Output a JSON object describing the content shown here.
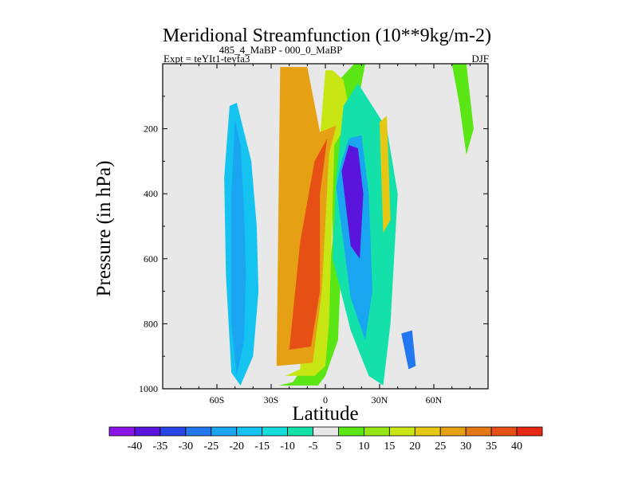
{
  "chart_data": {
    "type": "heatmap",
    "title": "Meridional Streamfunction (10**9kg/m-2)",
    "subtitle_left": "Expt = teYIt1-teyfa3",
    "subtitle_mid": "485_4_MaBP - 000_0_MaBP",
    "season": "DJF",
    "xlabel": "Latitude",
    "ylabel": "Pressure (in hPa)",
    "xlim": [
      -90,
      90
    ],
    "ylim": [
      1000,
      0
    ],
    "x_ticks": [
      {
        "value": -60,
        "label": "60S"
      },
      {
        "value": -30,
        "label": "30S"
      },
      {
        "value": 0,
        "label": "0"
      },
      {
        "value": 30,
        "label": "30N"
      },
      {
        "value": 60,
        "label": "60N"
      }
    ],
    "y_ticks": [
      {
        "value": 200,
        "label": "200"
      },
      {
        "value": 400,
        "label": "400"
      },
      {
        "value": 600,
        "label": "600"
      },
      {
        "value": 800,
        "label": "800"
      },
      {
        "value": 1000,
        "label": "1000"
      }
    ],
    "colorbar": {
      "levels": [
        -40,
        -35,
        -30,
        -25,
        -20,
        -15,
        -10,
        -5,
        5,
        10,
        15,
        20,
        25,
        30,
        35,
        40
      ],
      "colors": [
        "#8b14e6",
        "#5a14dc",
        "#2846e6",
        "#2378f0",
        "#19a5f0",
        "#14c3f0",
        "#14dcdc",
        "#14e1aa",
        "#e8e8e8",
        "#5ae614",
        "#96e614",
        "#c8e614",
        "#e6c814",
        "#e6a014",
        "#e67814",
        "#e65014",
        "#e62814"
      ]
    },
    "regions": [
      {
        "name": "sh-vertical-blue-band",
        "value": -17,
        "lat": [
          -47,
          -40,
          -37,
          -38,
          -41,
          -49,
          -53,
          -56,
          -55,
          -52
        ],
        "p": [
          990,
          900,
          700,
          500,
          300,
          120,
          130,
          350,
          650,
          950
        ]
      },
      {
        "name": "sh-blue-core",
        "value": -24,
        "lat": [
          -49,
          -45,
          -44,
          -45,
          -47,
          -50,
          -52,
          -52
        ],
        "p": [
          960,
          850,
          650,
          450,
          250,
          170,
          400,
          800
        ]
      },
      {
        "name": "southern-cell-outer",
        "value": 7,
        "lat": [
          -28,
          -4,
          0,
          7,
          12,
          18,
          22,
          16,
          6,
          3,
          4,
          -2,
          -18,
          -26
        ],
        "p": [
          990,
          990,
          960,
          850,
          140,
          120,
          0,
          0,
          60,
          130,
          540,
          850,
          980,
          990
        ]
      },
      {
        "name": "southern-cell-yellow",
        "value": 17,
        "lat": [
          -26,
          -6,
          0,
          2,
          5,
          14,
          10,
          4,
          0,
          -4,
          -14,
          -22
        ],
        "p": [
          960,
          960,
          930,
          800,
          250,
          165,
          50,
          20,
          20,
          300,
          940,
          960
        ]
      },
      {
        "name": "southern-cell-orange",
        "value": 30,
        "lat": [
          -27,
          -7,
          -2,
          2,
          6,
          -3,
          -10,
          -25
        ],
        "p": [
          930,
          920,
          700,
          280,
          190,
          210,
          10,
          10
        ]
      },
      {
        "name": "southern-cell-core",
        "value": 38,
        "lat": [
          -20,
          -8,
          -3,
          -3,
          1,
          -6,
          -14
        ],
        "p": [
          880,
          870,
          700,
          400,
          230,
          300,
          550
        ]
      },
      {
        "name": "northern-cell-outer",
        "value": -8,
        "lat": [
          4,
          14,
          24,
          32,
          36,
          40,
          34,
          26,
          18,
          10,
          6
        ],
        "p": [
          600,
          820,
          960,
          990,
          800,
          400,
          200,
          130,
          60,
          130,
          350
        ]
      },
      {
        "name": "northern-cell-blue",
        "value": -21,
        "lat": [
          6,
          14,
          22,
          26,
          24,
          20,
          13,
          9
        ],
        "p": [
          380,
          720,
          850,
          700,
          400,
          220,
          230,
          300
        ]
      },
      {
        "name": "northern-cell-core",
        "value": -37,
        "lat": [
          9,
          14,
          19,
          21,
          18,
          13
        ],
        "p": [
          330,
          560,
          600,
          400,
          260,
          250
        ]
      },
      {
        "name": "nh-midlat-low",
        "value": -27,
        "lat": [
          42,
          48,
          50,
          46
        ],
        "p": [
          830,
          820,
          930,
          940
        ]
      },
      {
        "name": "nh-upper-green",
        "value": 8,
        "lat": [
          70,
          78,
          82,
          78,
          74
        ],
        "p": [
          0,
          0,
          200,
          280,
          120
        ]
      },
      {
        "name": "nh-yellow-streak",
        "value": 22,
        "lat": [
          30,
          34,
          36,
          32
        ],
        "p": [
          180,
          160,
          480,
          520
        ]
      }
    ]
  }
}
